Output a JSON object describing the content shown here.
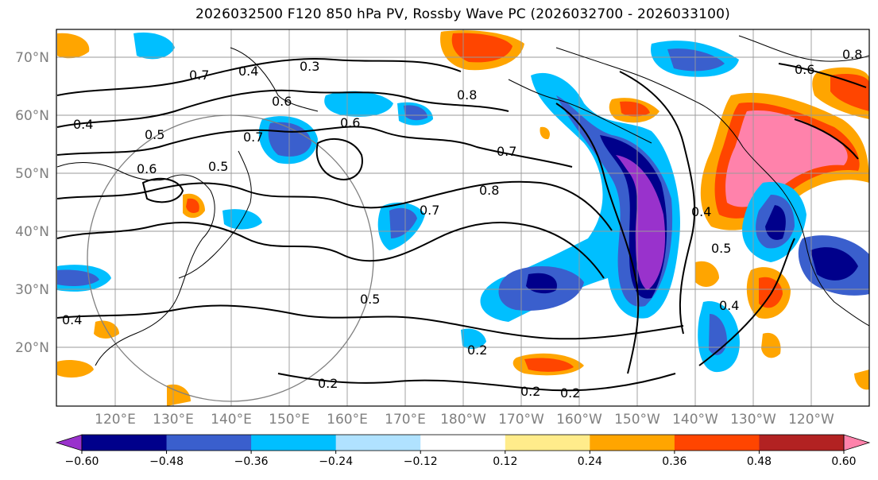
{
  "title": "2026032500 F120 850 hPa PV, Rossby Wave PC (2026032700 - 2026033100)",
  "map": {
    "lat_ticks": [
      "70°N",
      "60°N",
      "50°N",
      "40°N",
      "30°N",
      "20°N"
    ],
    "lon_ticks": [
      "120°E",
      "130°E",
      "140°E",
      "150°E",
      "160°E",
      "170°E",
      "180°W",
      "170°W",
      "160°W",
      "150°W",
      "140°W",
      "130°W",
      "120°W"
    ],
    "contour_labels": [
      "0.3",
      "0.4",
      "0.6",
      "0.8",
      "0.7",
      "0.5",
      "0.6",
      "0.7",
      "0.8",
      "0.7",
      "0.5",
      "0.4",
      "0.2",
      "0.2",
      "0.2",
      "0.2",
      "0.4",
      "0.5",
      "0.4",
      "0.8",
      "0.6",
      "0.5",
      "0.7",
      "0.4",
      "0.6"
    ]
  },
  "colorbar": {
    "ticks": [
      "−0.60",
      "−0.48",
      "−0.36",
      "−0.24",
      "−0.12",
      "0.12",
      "0.24",
      "0.36",
      "0.48",
      "0.60"
    ],
    "colors": [
      "#9932cc",
      "#00008b",
      "#3a5fcd",
      "#00bfff",
      "#b0e2ff",
      "#ffffff",
      "#ffec8b",
      "#ffa500",
      "#ff4500",
      "#b22222",
      "#ff82ab"
    ]
  }
}
